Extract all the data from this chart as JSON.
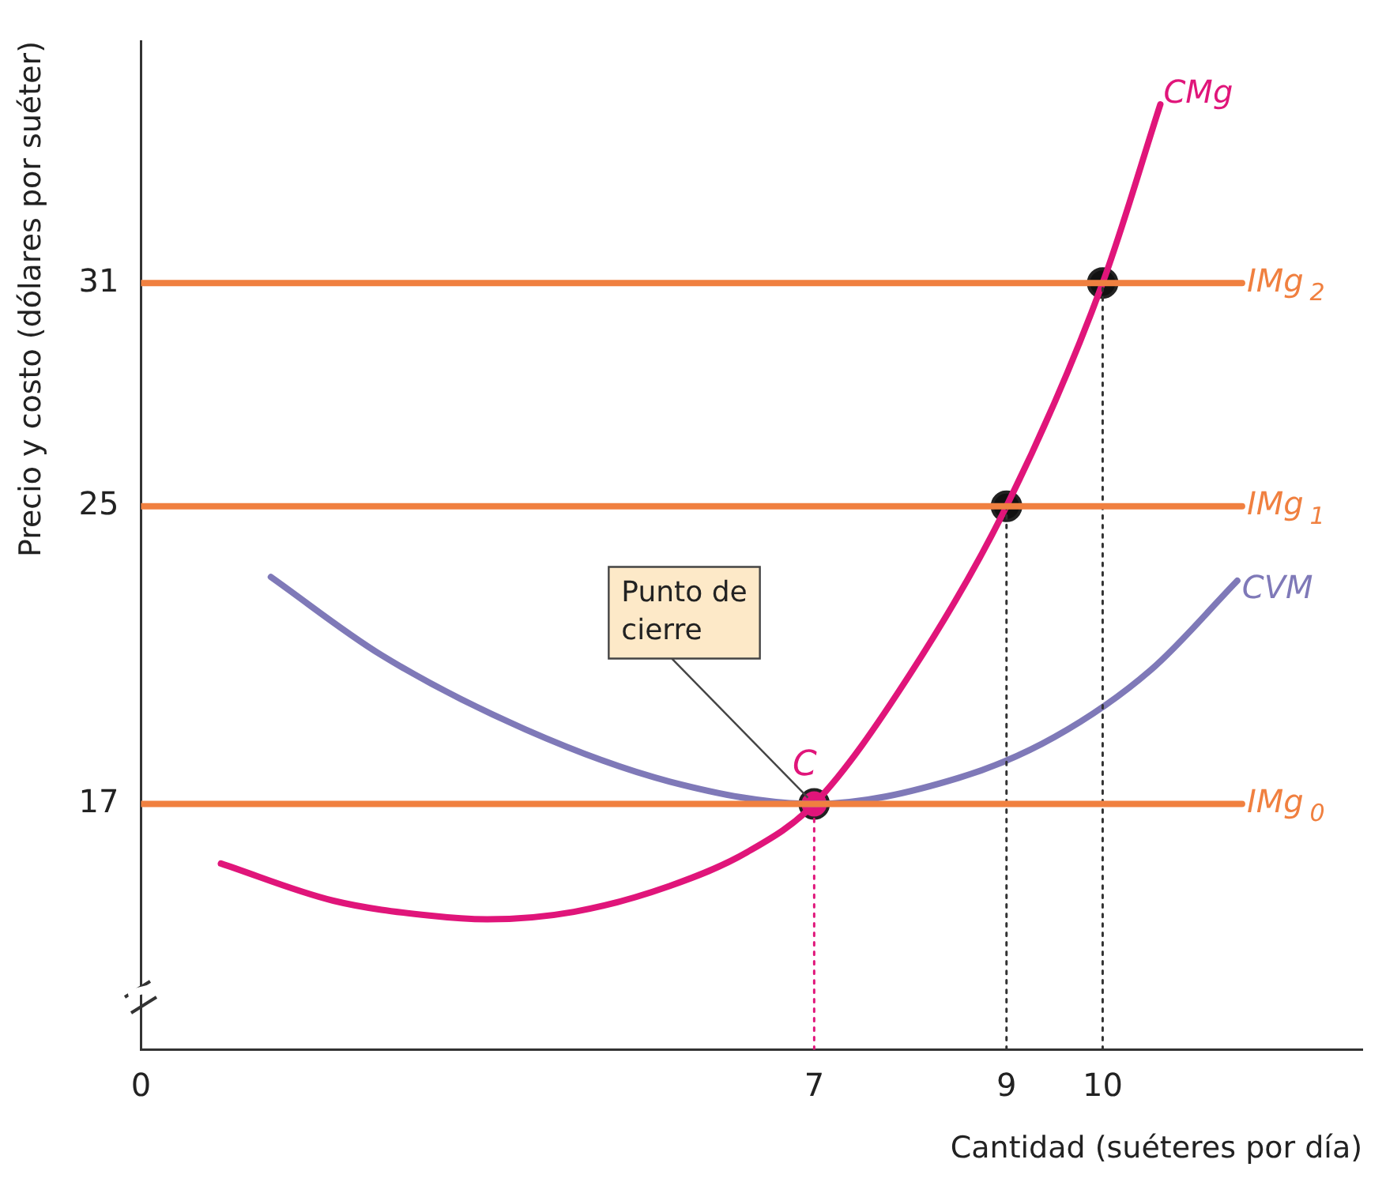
{
  "chart_data": {
    "type": "line",
    "xlabel": "Cantidad (suéteres por día)",
    "ylabel": "Precio y costo (dólares por suéter)",
    "xlim": [
      0,
      12.7
    ],
    "xticks": [
      0,
      7,
      9,
      10
    ],
    "ylim": [
      10.4,
      37.5
    ],
    "yticks": [
      17,
      25,
      31
    ],
    "grid": false,
    "legend": false,
    "marker": "none",
    "series": [
      {
        "name": "IMg$_{0}$",
        "color": "#f08040",
        "x": [
          0,
          11.45
        ],
        "values": [
          17,
          17
        ]
      },
      {
        "name": "IMg$_{1}$",
        "color": "#f08040",
        "x": [
          0,
          11.45
        ],
        "values": [
          25,
          25
        ]
      },
      {
        "name": "IMg$_{2}$",
        "color": "#f08040",
        "x": [
          0,
          11.45
        ],
        "values": [
          31,
          31
        ]
      },
      {
        "color": "#333333",
        "line_style": "dotted",
        "x": [
          9,
          9
        ],
        "values": [
          10.4,
          25
        ]
      },
      {
        "color": "#333333",
        "line_style": "dotted",
        "x": [
          10,
          10
        ],
        "values": [
          10.4,
          31
        ]
      },
      {
        "color": "#e0157a",
        "line_style": "dotted",
        "x": [
          7,
          7
        ],
        "values": [
          10.4,
          17
        ]
      },
      {
        "name": "CVM",
        "color": "#7f79b8",
        "x": [
          1.35,
          2.5,
          4,
          5.5,
          7,
          8.5,
          9.5,
          10.5,
          11.4
        ],
        "values": [
          23.1,
          21,
          19,
          17.6,
          17,
          17.7,
          18.8,
          20.6,
          23
        ]
      },
      {
        "name": "CMg",
        "color": "#e0157a",
        "x": [
          0.83,
          2,
          3,
          3.6,
          4.5,
          5.5,
          6.3,
          7,
          8,
          9,
          10,
          10.6
        ],
        "values": [
          15.4,
          14.4,
          14,
          13.9,
          14.1,
          14.8,
          15.7,
          17,
          20.5,
          25,
          31,
          35.8
        ]
      },
      {
        "type": "scatter",
        "color": "#111111",
        "marker": "circle",
        "x": [
          9,
          10
        ],
        "values": [
          25,
          31
        ]
      },
      {
        "type": "scatter",
        "name": "C",
        "color": "#e0157a",
        "marker": "circle",
        "x": [
          7
        ],
        "values": [
          17
        ]
      }
    ],
    "annotations": [
      {
        "text": "Punto de\ncierre",
        "x": 7,
        "y": 17
      }
    ]
  }
}
